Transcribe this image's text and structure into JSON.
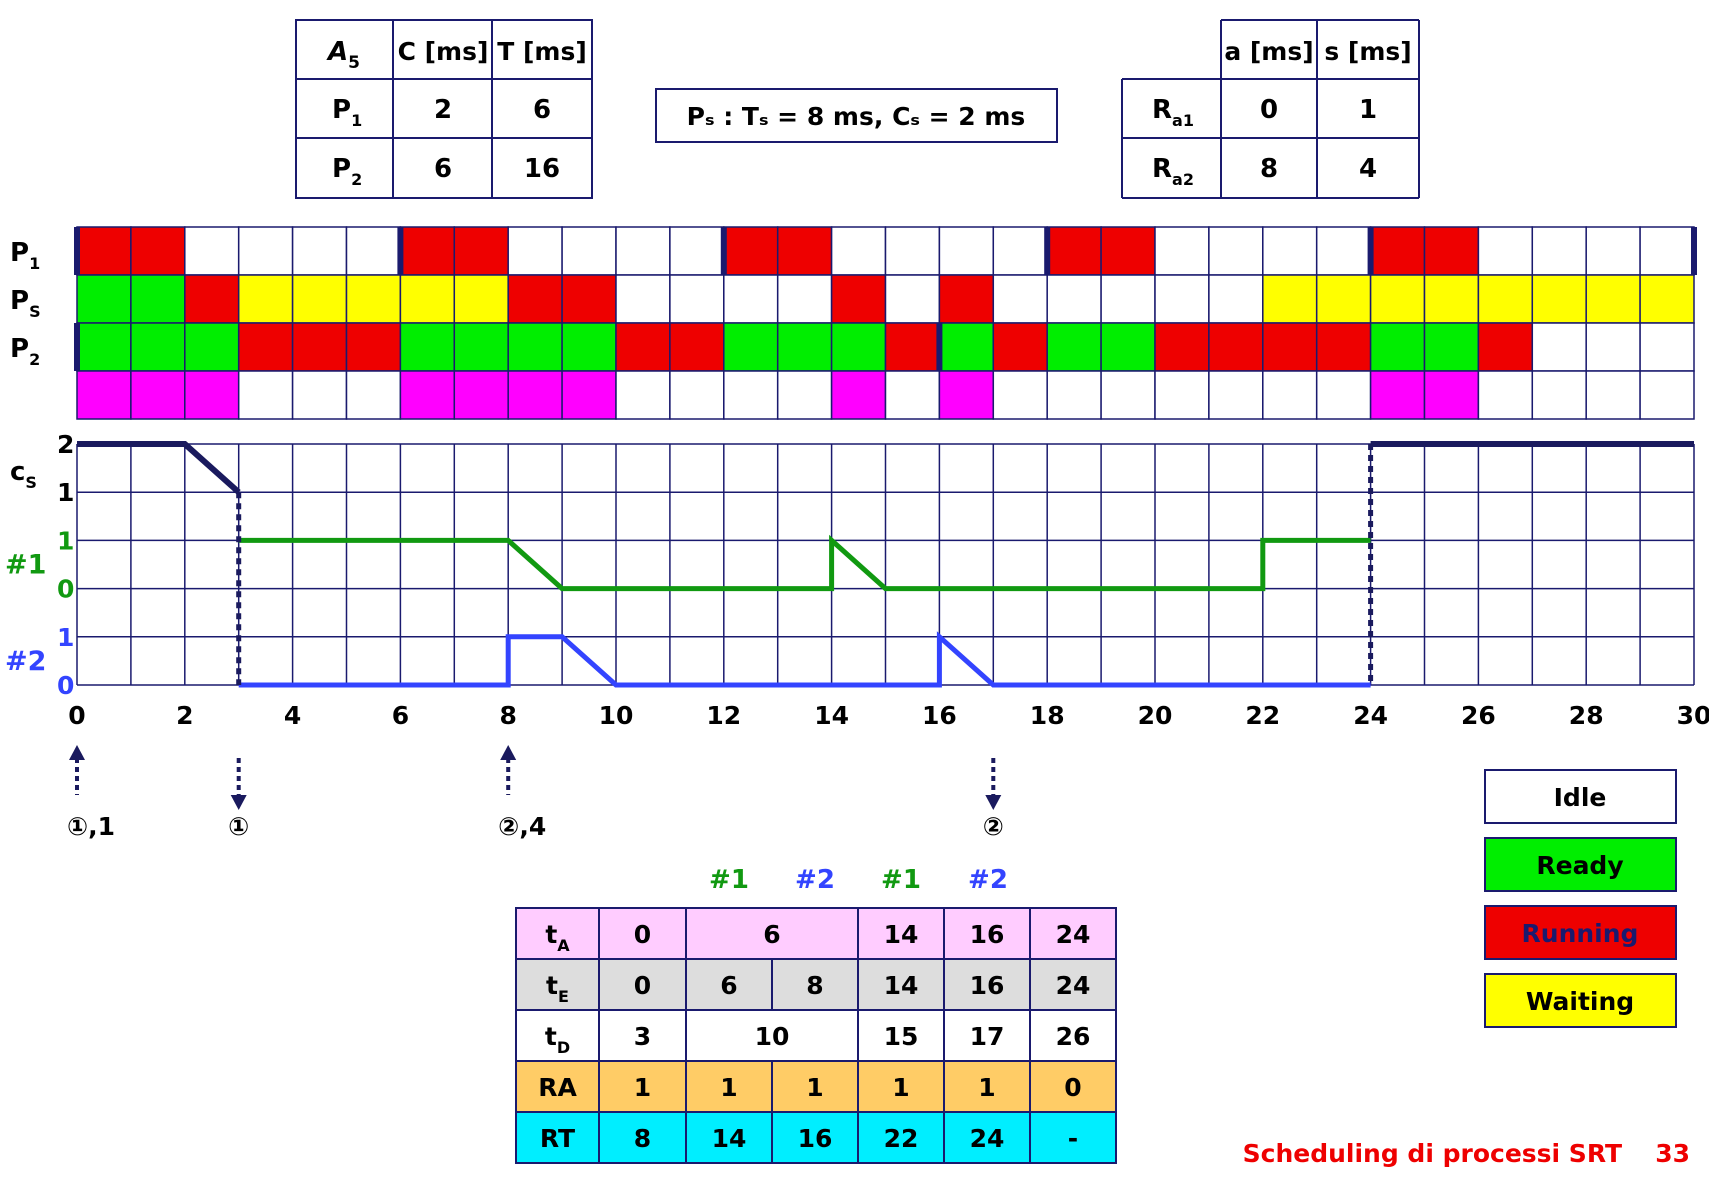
{
  "colors": {
    "idle": "#ffffff",
    "ready": "#00ee00",
    "running": "#ee0000",
    "waiting": "#ffff00",
    "magenta": "#ff00ff",
    "grid": "#1a1a6e",
    "cs_line": "#1a1a5e",
    "line1": "#119911",
    "line2": "#3344ff",
    "footer": "#ee0000",
    "pink": "#ffccff",
    "gray": "#dddddd",
    "orange": "#ffcc66",
    "cyan": "#00eeff"
  },
  "tableA5": {
    "header": [
      "A",
      "C [ms]",
      "T [ms]"
    ],
    "header_sub": "5",
    "rows": [
      {
        "name": "P",
        "sub": "1",
        "c": "2",
        "t": "6"
      },
      {
        "name": "P",
        "sub": "2",
        "c": "6",
        "t": "16"
      }
    ]
  },
  "ps_box": "Pₛ : Tₛ = 8 ms, Cₛ = 2 ms",
  "tableR": {
    "header": [
      "",
      "a [ms]",
      "s [ms]"
    ],
    "rows": [
      {
        "name": "R",
        "sub": "a1",
        "a": "0",
        "s": "1"
      },
      {
        "name": "R",
        "sub": "a2",
        "a": "8",
        "s": "4"
      }
    ]
  },
  "gantt": {
    "rows": [
      {
        "label": "P",
        "sub": "1",
        "cells": [
          "R",
          "R",
          "I",
          "I",
          "I",
          "I",
          "R",
          "R",
          "I",
          "I",
          "I",
          "I",
          "R",
          "R",
          "I",
          "I",
          "I",
          "I",
          "R",
          "R",
          "I",
          "I",
          "I",
          "I",
          "R",
          "R",
          "I",
          "I",
          "I",
          "I"
        ],
        "marks": [
          0,
          6,
          12,
          18,
          24,
          30
        ]
      },
      {
        "label": "P",
        "sub": "S",
        "cells": [
          "G",
          "G",
          "R",
          "Y",
          "Y",
          "Y",
          "Y",
          "Y",
          "R",
          "R",
          "I",
          "I",
          "I",
          "I",
          "R",
          "I",
          "R",
          "I",
          "I",
          "I",
          "I",
          "I",
          "Y",
          "Y",
          "Y",
          "Y",
          "Y",
          "Y",
          "Y",
          "Y"
        ],
        "marks": []
      },
      {
        "label": "P",
        "sub": "2",
        "cells": [
          "G",
          "G",
          "G",
          "R",
          "R",
          "R",
          "G",
          "G",
          "G",
          "G",
          "R",
          "R",
          "G",
          "G",
          "G",
          "R",
          "G",
          "R",
          "G",
          "G",
          "R",
          "R",
          "R",
          "R",
          "G",
          "G",
          "R",
          "I",
          "I",
          "I"
        ],
        "marks": [
          0,
          16
        ]
      },
      {
        "label": "",
        "sub": "",
        "cells": [
          "M",
          "M",
          "M",
          "I",
          "I",
          "I",
          "M",
          "M",
          "M",
          "M",
          "I",
          "I",
          "I",
          "I",
          "M",
          "I",
          "M",
          "I",
          "I",
          "I",
          "I",
          "I",
          "I",
          "I",
          "M",
          "M",
          "I",
          "I",
          "I",
          "I"
        ],
        "marks": []
      }
    ]
  },
  "budget": {
    "cs_label": "c",
    "cs_sub": "S",
    "cs_ticks": [
      "2",
      "1"
    ],
    "line1_label": "#1",
    "line1_ticks": [
      "1",
      "0"
    ],
    "line2_label": "#2",
    "line2_ticks": [
      "1",
      "0"
    ],
    "cs_points": [
      [
        0,
        2
      ],
      [
        2,
        2
      ],
      [
        3,
        1
      ]
    ],
    "cs_points_late": [
      [
        24,
        2
      ],
      [
        30,
        2
      ]
    ],
    "line1_points": [
      [
        3,
        1
      ],
      [
        8,
        1
      ],
      [
        9,
        0
      ],
      [
        14,
        0
      ],
      [
        14,
        1
      ],
      [
        15,
        0
      ],
      [
        22,
        0
      ],
      [
        22,
        1
      ],
      [
        24,
        1
      ]
    ],
    "line2_points": [
      [
        3,
        0
      ],
      [
        8,
        0
      ],
      [
        8,
        1
      ],
      [
        9,
        1
      ],
      [
        10,
        0
      ],
      [
        16,
        0
      ],
      [
        16,
        1
      ],
      [
        17,
        0
      ],
      [
        24,
        0
      ]
    ],
    "dotted_at": [
      3,
      24
    ]
  },
  "x_axis": [
    "0",
    "2",
    "4",
    "6",
    "8",
    "10",
    "12",
    "14",
    "16",
    "18",
    "20",
    "22",
    "24",
    "26",
    "28",
    "30"
  ],
  "arrows": [
    {
      "t": 0,
      "dir": "up",
      "label": "①,1"
    },
    {
      "t": 3,
      "dir": "down",
      "label": "①"
    },
    {
      "t": 8,
      "dir": "up",
      "label": "②,4"
    },
    {
      "t": 17,
      "dir": "down",
      "label": "②"
    }
  ],
  "legend": [
    "Idle",
    "Ready",
    "Running",
    "Waiting"
  ],
  "bottom_table": {
    "col_heads": [
      "#1",
      "#2",
      "#1",
      "#2"
    ],
    "row_labels": [
      {
        "name": "t",
        "sub": "A"
      },
      {
        "name": "t",
        "sub": "E"
      },
      {
        "name": "t",
        "sub": "D"
      },
      {
        "name": "RA",
        "sub": ""
      },
      {
        "name": "RT",
        "sub": ""
      }
    ],
    "tA": [
      "0",
      "6",
      "14",
      "16",
      "24"
    ],
    "tE": [
      "0",
      "6",
      "8",
      "14",
      "16",
      "24"
    ],
    "tD": [
      "3",
      "10",
      "15",
      "17",
      "26"
    ],
    "RA": [
      "1",
      "1",
      "1",
      "1",
      "1",
      "0"
    ],
    "RT": [
      "8",
      "14",
      "16",
      "22",
      "24",
      "-"
    ]
  },
  "footer": {
    "text": "Scheduling di processi SRT",
    "page": "33"
  }
}
